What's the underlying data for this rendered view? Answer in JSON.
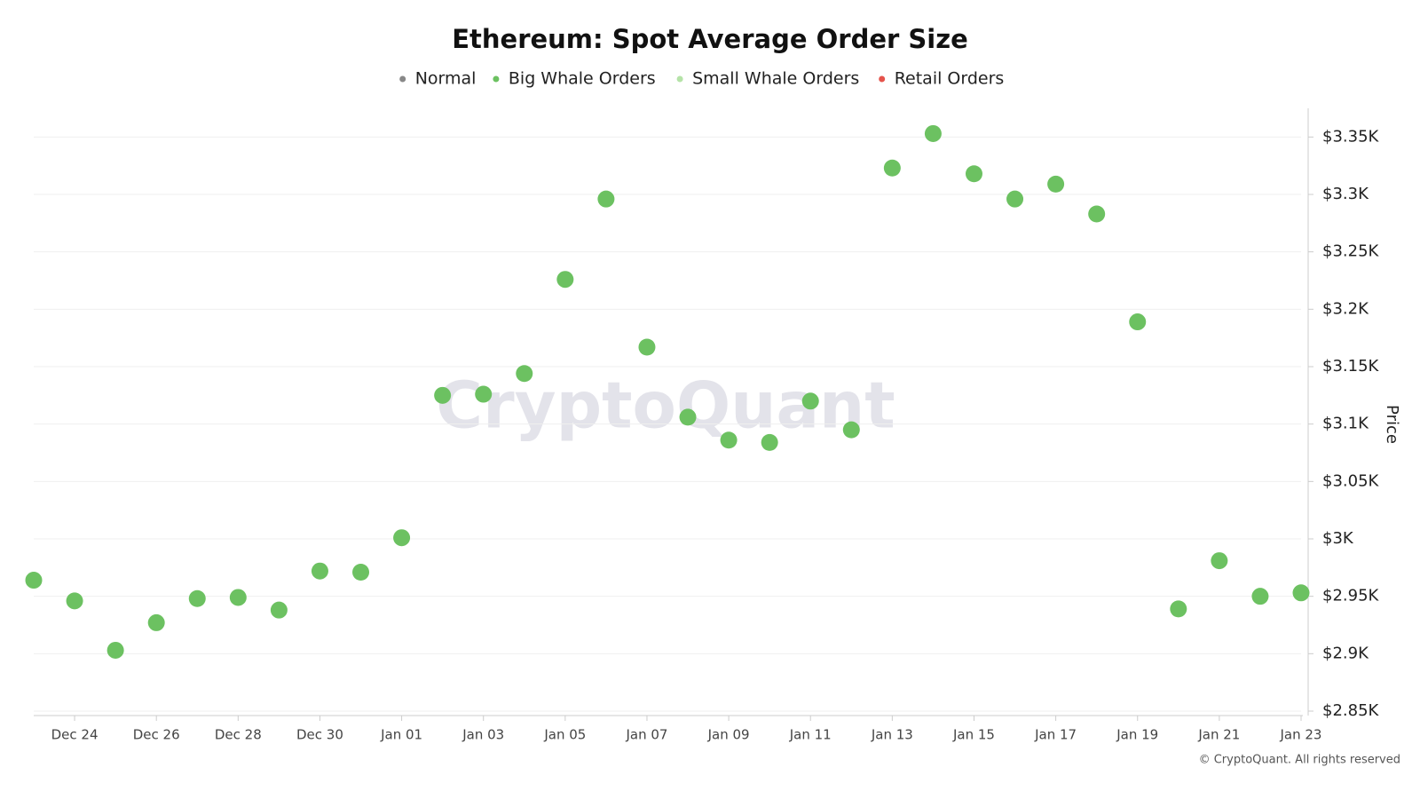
{
  "chart_data": {
    "type": "scatter",
    "title": "Ethereum: Spot Average Order Size",
    "y_label": "Price",
    "watermark": "CryptoQuant",
    "footer": "© CryptoQuant. All rights reserved",
    "categories": [
      null,
      "Dec 24",
      null,
      "Dec 26",
      null,
      "Dec 28",
      null,
      "Dec 30",
      null,
      "Jan 01",
      null,
      "Jan 03",
      null,
      "Jan 05",
      null,
      "Jan 07",
      null,
      "Jan 09",
      null,
      "Jan 11",
      null,
      "Jan 13",
      null,
      "Jan 15",
      null,
      "Jan 17",
      null,
      "Jan 19",
      null,
      "Jan 21",
      null,
      "Jan 23"
    ],
    "series": [
      {
        "name": "Normal",
        "color": "#888888",
        "values": [
          null,
          null,
          null,
          null,
          null,
          null,
          null,
          null,
          null,
          null,
          null,
          null,
          null,
          null,
          null,
          null,
          null,
          null,
          null,
          null,
          null,
          null,
          null,
          null,
          null,
          null,
          null,
          null,
          null,
          null,
          null,
          null
        ]
      },
      {
        "name": "Big Whale Orders",
        "color": "#6cc161",
        "values": [
          2964,
          2946,
          2903,
          2927,
          2948,
          2949,
          2938,
          2972,
          2971,
          3001,
          3125,
          3126,
          3144,
          3226,
          3296,
          3167,
          3106,
          3086,
          3084,
          3120,
          3095,
          3323,
          3353,
          3318,
          3296,
          3309,
          3283,
          3189,
          2939,
          2981,
          2950,
          2953
        ]
      },
      {
        "name": "Small Whale Orders",
        "color": "#b5e3a8",
        "values": [
          null,
          null,
          null,
          null,
          null,
          null,
          null,
          null,
          null,
          null,
          null,
          null,
          null,
          null,
          null,
          null,
          null,
          null,
          null,
          null,
          null,
          null,
          null,
          null,
          null,
          null,
          null,
          null,
          null,
          null,
          null,
          null
        ]
      },
      {
        "name": "Retail Orders",
        "color": "#e5534b",
        "values": [
          null,
          null,
          null,
          null,
          null,
          null,
          null,
          null,
          null,
          null,
          null,
          null,
          null,
          null,
          null,
          null,
          null,
          null,
          null,
          null,
          null,
          null,
          null,
          null,
          null,
          null,
          null,
          null,
          null,
          null,
          null,
          null
        ]
      }
    ],
    "ylim": [
      2850,
      3375
    ],
    "yticks": [
      {
        "value": 2850,
        "label": "$2.85K"
      },
      {
        "value": 2900,
        "label": "$2.9K"
      },
      {
        "value": 2950,
        "label": "$2.95K"
      },
      {
        "value": 3000,
        "label": "$3K"
      },
      {
        "value": 3050,
        "label": "$3.05K"
      },
      {
        "value": 3100,
        "label": "$3.1K"
      },
      {
        "value": 3150,
        "label": "$3.15K"
      },
      {
        "value": 3200,
        "label": "$3.2K"
      },
      {
        "value": 3250,
        "label": "$3.25K"
      },
      {
        "value": 3300,
        "label": "$3.3K"
      },
      {
        "value": 3350,
        "label": "$3.35K"
      }
    ],
    "grid": true,
    "legend": "top"
  }
}
